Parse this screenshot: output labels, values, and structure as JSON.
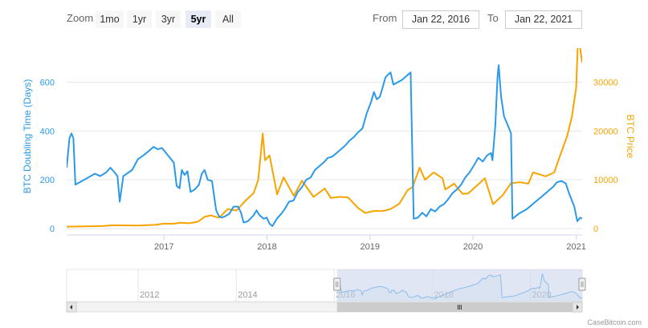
{
  "zoom": {
    "label": "Zoom",
    "buttons": [
      "1mo",
      "1yr",
      "3yr",
      "5yr",
      "All"
    ],
    "active": "5yr"
  },
  "range": {
    "from_label": "From",
    "from_value": "Jan 22, 2016",
    "to_label": "To",
    "to_value": "Jan 22, 2021"
  },
  "credit": "CaseBitcoin.com",
  "colors": {
    "doubling": "#2b99e8",
    "price": "#f7a400",
    "navigator_mask": "#ccd6eb",
    "grid": "#e6e6e6"
  },
  "chart_data": {
    "type": "line",
    "x_range": [
      "2016-01-22",
      "2021-01-22"
    ],
    "x_ticks": [
      "2017",
      "2018",
      "2019",
      "2020",
      "2021"
    ],
    "y_left": {
      "label": "BTC Doubling Time (Days)",
      "ticks": [
        "0",
        "200",
        "400",
        "600"
      ],
      "range": [
        0,
        720
      ]
    },
    "y_right": {
      "label": "BTC Price",
      "ticks": [
        "0",
        "10000",
        "20000",
        "30000"
      ],
      "range": [
        0,
        36000
      ]
    },
    "grid": true,
    "legend": "none",
    "series": [
      {
        "axis": "left",
        "points": [
          [
            "2016-01-22",
            250
          ],
          [
            "2016-02-01",
            370
          ],
          [
            "2016-02-08",
            390
          ],
          [
            "2016-02-15",
            370
          ],
          [
            "2016-02-22",
            180
          ],
          [
            "2016-04-01",
            205
          ],
          [
            "2016-05-01",
            225
          ],
          [
            "2016-05-20",
            215
          ],
          [
            "2016-06-10",
            230
          ],
          [
            "2016-06-25",
            250
          ],
          [
            "2016-07-10",
            230
          ],
          [
            "2016-07-20",
            215
          ],
          [
            "2016-07-28",
            110
          ],
          [
            "2016-08-10",
            215
          ],
          [
            "2016-09-10",
            240
          ],
          [
            "2016-10-01",
            285
          ],
          [
            "2016-10-20",
            300
          ],
          [
            "2016-11-10",
            320
          ],
          [
            "2016-11-25",
            335
          ],
          [
            "2016-12-10",
            325
          ],
          [
            "2016-12-25",
            330
          ],
          [
            "2017-01-15",
            300
          ],
          [
            "2017-02-05",
            270
          ],
          [
            "2017-02-15",
            175
          ],
          [
            "2017-02-25",
            165
          ],
          [
            "2017-03-05",
            240
          ],
          [
            "2017-03-15",
            220
          ],
          [
            "2017-03-25",
            235
          ],
          [
            "2017-04-05",
            150
          ],
          [
            "2017-04-20",
            160
          ],
          [
            "2017-05-05",
            180
          ],
          [
            "2017-05-15",
            225
          ],
          [
            "2017-05-25",
            240
          ],
          [
            "2017-06-05",
            200
          ],
          [
            "2017-06-20",
            195
          ],
          [
            "2017-07-05",
            75
          ],
          [
            "2017-07-15",
            50
          ],
          [
            "2017-07-25",
            45
          ],
          [
            "2017-08-05",
            50
          ],
          [
            "2017-08-20",
            60
          ],
          [
            "2017-09-05",
            90
          ],
          [
            "2017-09-20",
            90
          ],
          [
            "2017-10-01",
            65
          ],
          [
            "2017-10-10",
            25
          ],
          [
            "2017-10-25",
            30
          ],
          [
            "2017-11-15",
            55
          ],
          [
            "2017-11-25",
            75
          ],
          [
            "2017-12-05",
            55
          ],
          [
            "2017-12-20",
            40
          ],
          [
            "2017-12-31",
            45
          ],
          [
            "2018-01-10",
            20
          ],
          [
            "2018-01-20",
            10
          ],
          [
            "2018-02-05",
            40
          ],
          [
            "2018-02-20",
            60
          ],
          [
            "2018-03-05",
            80
          ],
          [
            "2018-03-20",
            110
          ],
          [
            "2018-04-05",
            115
          ],
          [
            "2018-04-20",
            150
          ],
          [
            "2018-05-05",
            170
          ],
          [
            "2018-05-20",
            200
          ],
          [
            "2018-06-05",
            210
          ],
          [
            "2018-06-20",
            240
          ],
          [
            "2018-07-05",
            255
          ],
          [
            "2018-07-20",
            270
          ],
          [
            "2018-08-05",
            290
          ],
          [
            "2018-08-20",
            295
          ],
          [
            "2018-09-05",
            310
          ],
          [
            "2018-09-20",
            325
          ],
          [
            "2018-10-05",
            340
          ],
          [
            "2018-10-20",
            360
          ],
          [
            "2018-11-05",
            375
          ],
          [
            "2018-11-20",
            395
          ],
          [
            "2018-12-05",
            410
          ],
          [
            "2018-12-20",
            470
          ],
          [
            "2019-01-05",
            520
          ],
          [
            "2019-01-15",
            560
          ],
          [
            "2019-01-25",
            530
          ],
          [
            "2019-02-05",
            540
          ],
          [
            "2019-02-15",
            580
          ],
          [
            "2019-02-25",
            620
          ],
          [
            "2019-03-05",
            630
          ],
          [
            "2019-03-15",
            640
          ],
          [
            "2019-03-25",
            590
          ],
          [
            "2019-04-10",
            600
          ],
          [
            "2019-04-25",
            610
          ],
          [
            "2019-05-10",
            625
          ],
          [
            "2019-05-25",
            640
          ],
          [
            "2019-06-05",
            40
          ],
          [
            "2019-06-20",
            45
          ],
          [
            "2019-07-05",
            65
          ],
          [
            "2019-07-20",
            50
          ],
          [
            "2019-08-05",
            80
          ],
          [
            "2019-08-20",
            70
          ],
          [
            "2019-09-05",
            90
          ],
          [
            "2019-09-20",
            100
          ],
          [
            "2019-10-05",
            120
          ],
          [
            "2019-10-20",
            145
          ],
          [
            "2019-11-05",
            160
          ],
          [
            "2019-11-20",
            180
          ],
          [
            "2019-12-05",
            210
          ],
          [
            "2019-12-20",
            230
          ],
          [
            "2020-01-05",
            260
          ],
          [
            "2020-01-20",
            290
          ],
          [
            "2020-02-05",
            275
          ],
          [
            "2020-02-20",
            300
          ],
          [
            "2020-03-05",
            310
          ],
          [
            "2020-03-10",
            280
          ],
          [
            "2020-03-20",
            420
          ],
          [
            "2020-03-28",
            620
          ],
          [
            "2020-04-01",
            670
          ],
          [
            "2020-04-10",
            540
          ],
          [
            "2020-04-20",
            460
          ],
          [
            "2020-05-05",
            420
          ],
          [
            "2020-05-15",
            390
          ],
          [
            "2020-05-20",
            40
          ],
          [
            "2020-06-10",
            60
          ],
          [
            "2020-07-10",
            80
          ],
          [
            "2020-08-10",
            110
          ],
          [
            "2020-09-10",
            140
          ],
          [
            "2020-10-10",
            170
          ],
          [
            "2020-10-25",
            190
          ],
          [
            "2020-11-10",
            195
          ],
          [
            "2020-11-25",
            185
          ],
          [
            "2020-12-05",
            150
          ],
          [
            "2020-12-15",
            120
          ],
          [
            "2020-12-25",
            90
          ],
          [
            "2021-01-05",
            30
          ],
          [
            "2021-01-15",
            45
          ],
          [
            "2021-01-22",
            40
          ]
        ]
      },
      {
        "axis": "right",
        "name": "BTC Price",
        "points": [
          [
            "2016-01-22",
            400
          ],
          [
            "2016-06-01",
            530
          ],
          [
            "2016-07-01",
            670
          ],
          [
            "2016-10-01",
            615
          ],
          [
            "2016-12-01",
            750
          ],
          [
            "2017-01-01",
            1000
          ],
          [
            "2017-02-01",
            990
          ],
          [
            "2017-03-01",
            1200
          ],
          [
            "2017-04-01",
            1080
          ],
          [
            "2017-05-01",
            1400
          ],
          [
            "2017-05-25",
            2400
          ],
          [
            "2017-06-15",
            2700
          ],
          [
            "2017-07-15",
            2200
          ],
          [
            "2017-08-15",
            4000
          ],
          [
            "2017-09-15",
            3700
          ],
          [
            "2017-10-15",
            5600
          ],
          [
            "2017-11-15",
            7300
          ],
          [
            "2017-12-01",
            10000
          ],
          [
            "2017-12-17",
            19500
          ],
          [
            "2017-12-25",
            14000
          ],
          [
            "2018-01-10",
            15000
          ],
          [
            "2018-02-06",
            7000
          ],
          [
            "2018-03-01",
            10500
          ],
          [
            "2018-04-06",
            6700
          ],
          [
            "2018-05-05",
            9800
          ],
          [
            "2018-06-15",
            6500
          ],
          [
            "2018-07-25",
            8200
          ],
          [
            "2018-08-15",
            6300
          ],
          [
            "2018-09-15",
            6500
          ],
          [
            "2018-10-15",
            6400
          ],
          [
            "2018-11-20",
            4200
          ],
          [
            "2018-12-15",
            3200
          ],
          [
            "2019-01-15",
            3600
          ],
          [
            "2019-02-15",
            3600
          ],
          [
            "2019-03-15",
            4000
          ],
          [
            "2019-04-15",
            5100
          ],
          [
            "2019-05-15",
            7900
          ],
          [
            "2019-06-01",
            8500
          ],
          [
            "2019-06-26",
            12500
          ],
          [
            "2019-07-15",
            10000
          ],
          [
            "2019-08-15",
            11500
          ],
          [
            "2019-09-15",
            10300
          ],
          [
            "2019-09-25",
            8000
          ],
          [
            "2019-10-26",
            9200
          ],
          [
            "2019-11-25",
            7100
          ],
          [
            "2019-12-15",
            7200
          ],
          [
            "2020-01-15",
            8800
          ],
          [
            "2020-02-12",
            10300
          ],
          [
            "2020-03-12",
            5000
          ],
          [
            "2020-04-15",
            6800
          ],
          [
            "2020-05-15",
            9300
          ],
          [
            "2020-06-15",
            9500
          ],
          [
            "2020-07-15",
            9200
          ],
          [
            "2020-08-01",
            11500
          ],
          [
            "2020-09-15",
            10700
          ],
          [
            "2020-10-15",
            11500
          ],
          [
            "2020-11-05",
            15000
          ],
          [
            "2020-11-30",
            19000
          ],
          [
            "2020-12-17",
            23000
          ],
          [
            "2021-01-01",
            29000
          ],
          [
            "2021-01-08",
            40000
          ],
          [
            "2021-01-15",
            37000
          ],
          [
            "2021-01-22",
            34000
          ]
        ]
      }
    ],
    "navigator": {
      "x_range": [
        "2010-07-17",
        "2021-01-22"
      ],
      "x_ticks": [
        "2012",
        "2014",
        "2016",
        "2018",
        "2020"
      ],
      "selected_range": [
        "2016-01-22",
        "2021-01-22"
      ]
    }
  }
}
